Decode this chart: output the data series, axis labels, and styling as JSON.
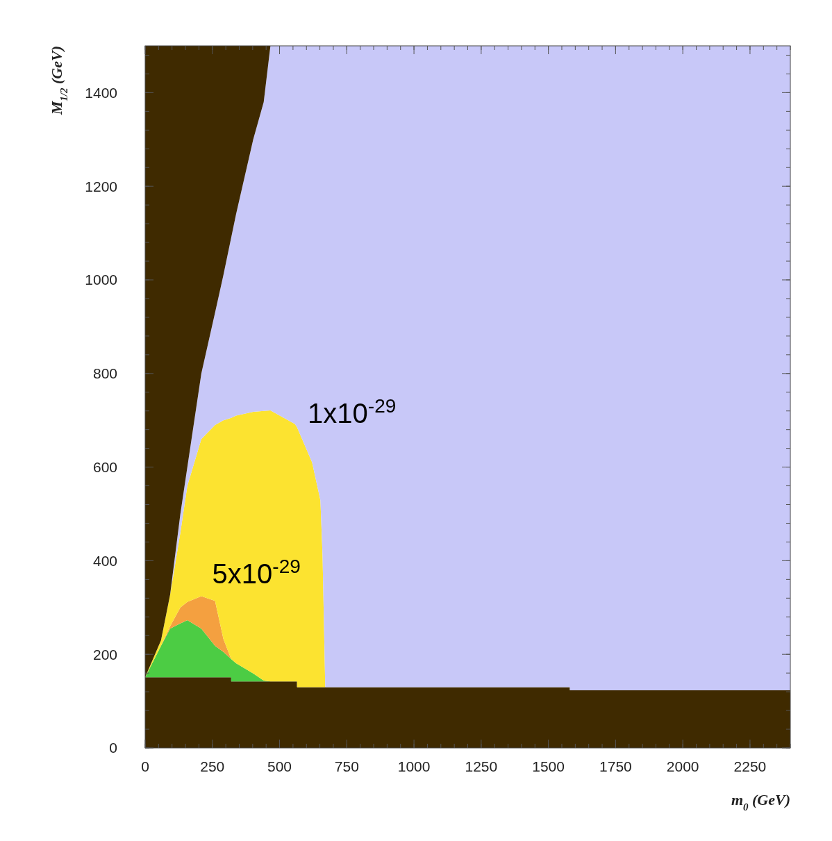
{
  "chart_data": {
    "type": "area",
    "stacked": true,
    "xlabel": "m$_{0}$ (GeV)",
    "ylabel": "M$_{1/2}$ (GeV)",
    "xlim": [
      0,
      2400
    ],
    "ylim": [
      0,
      1500
    ],
    "xticks": [
      0,
      250,
      500,
      750,
      1000,
      1250,
      1500,
      1750,
      2000,
      2250
    ],
    "yticks": [
      0,
      200,
      400,
      600,
      800,
      1000,
      1200,
      1400
    ],
    "grid": false,
    "x": [
      0,
      59,
      93,
      131,
      157,
      209,
      260,
      291,
      320,
      320,
      338,
      402,
      441,
      466,
      557,
      565,
      565,
      621,
      652,
      660,
      670,
      1580,
      1580,
      2400
    ],
    "series": [
      {
        "color": "#3f2a00",
        "values": [
          151,
          151,
          151,
          151,
          151,
          151,
          151,
          151,
          151,
          142,
          142,
          142,
          142,
          142,
          142,
          142,
          130,
          130,
          130,
          130,
          130,
          130,
          123,
          123
        ]
      },
      {
        "color": "#4ccc44",
        "values": [
          0,
          67,
          104,
          115,
          122,
          104,
          67,
          54,
          39,
          48,
          39,
          17,
          2,
          0,
          0,
          0,
          0,
          0,
          0,
          0,
          0,
          0,
          0,
          0
        ]
      },
      {
        "color": "#f4a040",
        "values": [
          0,
          0,
          5,
          34,
          39,
          69,
          96,
          28,
          0,
          0,
          0,
          0,
          0,
          0,
          0,
          0,
          0,
          0,
          0,
          0,
          0,
          0,
          0,
          0
        ]
      },
      {
        "color": "#fce330",
        "values": [
          0,
          12,
          68,
          160,
          248,
          336,
          376,
          467,
          515,
          515,
          529,
          559,
          576,
          579,
          550,
          543,
          555,
          480,
          399,
          280,
          0,
          0,
          0,
          0
        ]
      },
      {
        "color": "#c8c8f8",
        "values": [
          0,
          0,
          0,
          40,
          40,
          140,
          240,
          310,
          385,
          385,
          430,
          582,
          660,
          779,
          808,
          815,
          815,
          890,
          971,
          1090,
          1370,
          1370,
          1377,
          1377
        ]
      },
      {
        "color": "#3f2a00",
        "values": [
          1349,
          1270,
          1172,
          1000,
          900,
          700,
          570,
          490,
          410,
          410,
          360,
          200,
          120,
          0,
          0,
          0,
          0,
          0,
          0,
          0,
          0,
          0,
          0,
          0
        ]
      }
    ],
    "annotations": [
      "1x10$^{-29}$",
      "5x10$^{-29}$"
    ]
  }
}
